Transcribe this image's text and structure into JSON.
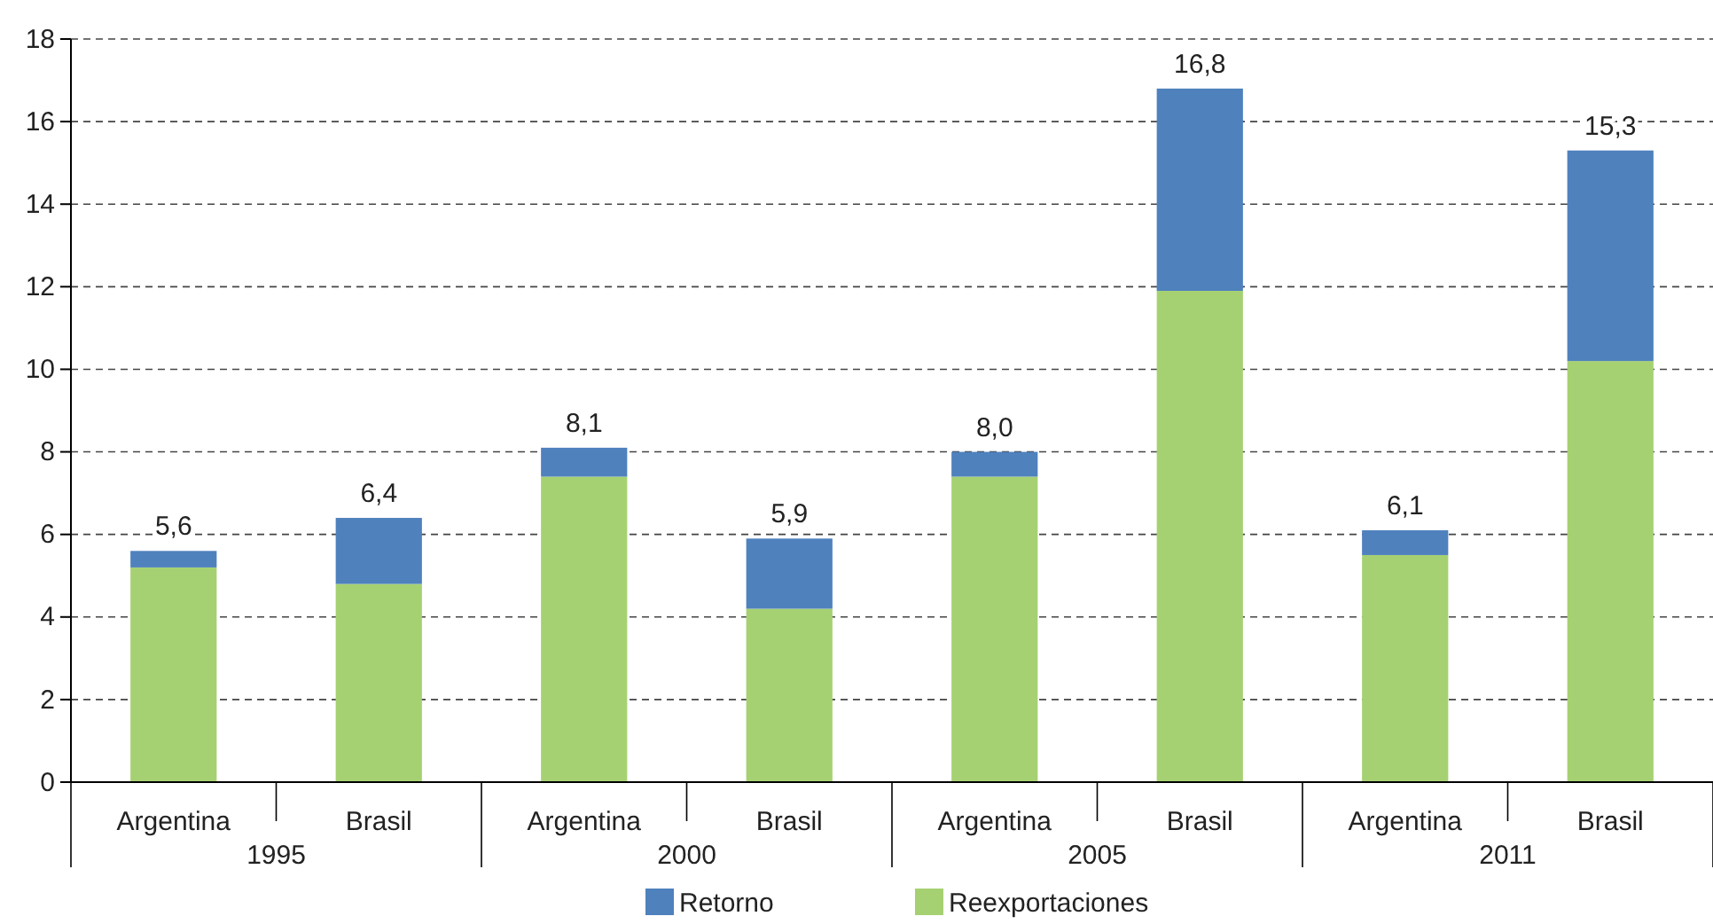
{
  "chart_data": {
    "type": "bar",
    "stacked": true,
    "categories": [
      "Argentina",
      "Brasil",
      "Argentina",
      "Brasil",
      "Argentina",
      "Brasil",
      "Argentina",
      "Brasil"
    ],
    "series": [
      {
        "name": "Reexportaciones",
        "color": "#a6d172",
        "values": [
          5.2,
          4.8,
          7.4,
          4.2,
          7.4,
          11.9,
          5.5,
          10.2
        ]
      },
      {
        "name": "Retorno",
        "color": "#4f81bd",
        "values": [
          0.4,
          1.6,
          0.7,
          1.7,
          0.6,
          4.9,
          0.6,
          5.1
        ]
      }
    ],
    "totals": [
      "5,6",
      "6,4",
      "8,1",
      "5,9",
      "8,0",
      "16,8",
      "6,1",
      "15,3"
    ],
    "annotations": [
      "1995",
      "2000",
      "2005",
      "2011"
    ],
    "ylim": [
      0,
      18
    ],
    "yticks": [
      0,
      2,
      4,
      6,
      8,
      10,
      12,
      14,
      16,
      18
    ],
    "grid": "y",
    "legend": "bottom"
  }
}
